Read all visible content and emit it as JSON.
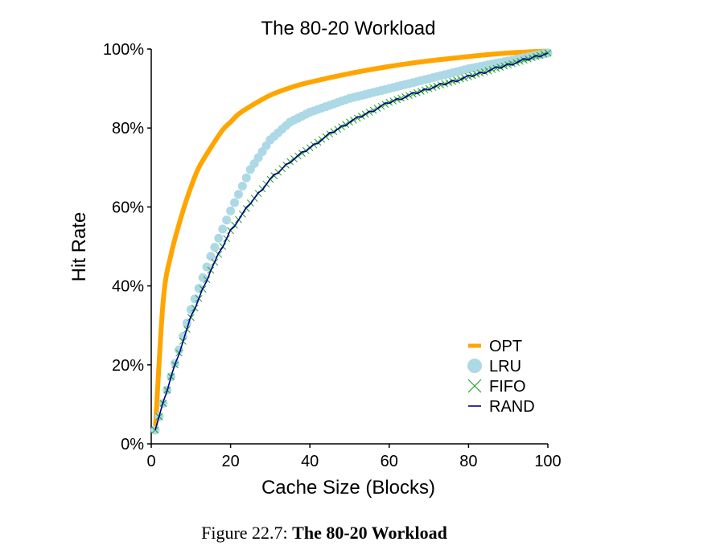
{
  "chart_data": {
    "type": "line",
    "title": "The 80-20 Workload",
    "xlabel": "Cache Size (Blocks)",
    "ylabel": "Hit Rate",
    "xlim": [
      0,
      100
    ],
    "ylim": [
      0,
      100
    ],
    "xticks": [
      0,
      20,
      40,
      60,
      80,
      100
    ],
    "xtick_labels": [
      "0",
      "20",
      "40",
      "60",
      "80",
      "100"
    ],
    "yticks": [
      0,
      20,
      40,
      60,
      80,
      100
    ],
    "ytick_labels": [
      "0%",
      "20%",
      "40%",
      "60%",
      "80%",
      "100%"
    ],
    "legend_position": "lower-right",
    "series": [
      {
        "name": "OPT",
        "style": "line",
        "color": "#FFA500",
        "x": [
          1,
          3,
          5,
          8,
          10,
          12,
          15,
          18,
          20,
          22,
          25,
          30,
          35,
          40,
          50,
          60,
          70,
          80,
          90,
          100
        ],
        "values": [
          3,
          36,
          48,
          59,
          65,
          70,
          75,
          79.5,
          81.5,
          83.5,
          85.5,
          88.3,
          90.2,
          91.6,
          93.8,
          95.6,
          97,
          98.1,
          99,
          99.5
        ]
      },
      {
        "name": "LRU",
        "style": "dots",
        "color": "#ADD8E6",
        "x": [
          1,
          5,
          10,
          15,
          20,
          25,
          30,
          35,
          40,
          50,
          60,
          70,
          80,
          90,
          100
        ],
        "values": [
          3.5,
          17,
          34,
          47.5,
          59,
          69.5,
          77,
          81.5,
          84,
          87.5,
          90,
          92.5,
          95,
          97,
          99
        ]
      },
      {
        "name": "FIFO",
        "style": "crosses",
        "color": "#22A022",
        "x": [
          1,
          5,
          10,
          15,
          20,
          25,
          30,
          35,
          40,
          45,
          50,
          60,
          70,
          80,
          90,
          100
        ],
        "values": [
          3.5,
          17,
          32,
          44,
          54,
          61,
          67,
          71.5,
          75,
          78.5,
          81.5,
          86.5,
          90,
          93,
          96,
          99
        ]
      },
      {
        "name": "RAND",
        "style": "line",
        "color": "#00008B",
        "x": [
          1,
          5,
          10,
          15,
          20,
          25,
          30,
          35,
          40,
          45,
          50,
          60,
          70,
          80,
          90,
          100
        ],
        "values": [
          3.5,
          17,
          32,
          44,
          54,
          61,
          67,
          71.5,
          75,
          78.5,
          81.5,
          86.5,
          90,
          93,
          96,
          99
        ]
      }
    ]
  },
  "caption": {
    "prefix": "Figure 22.7: ",
    "title": "The 80-20 Workload"
  }
}
